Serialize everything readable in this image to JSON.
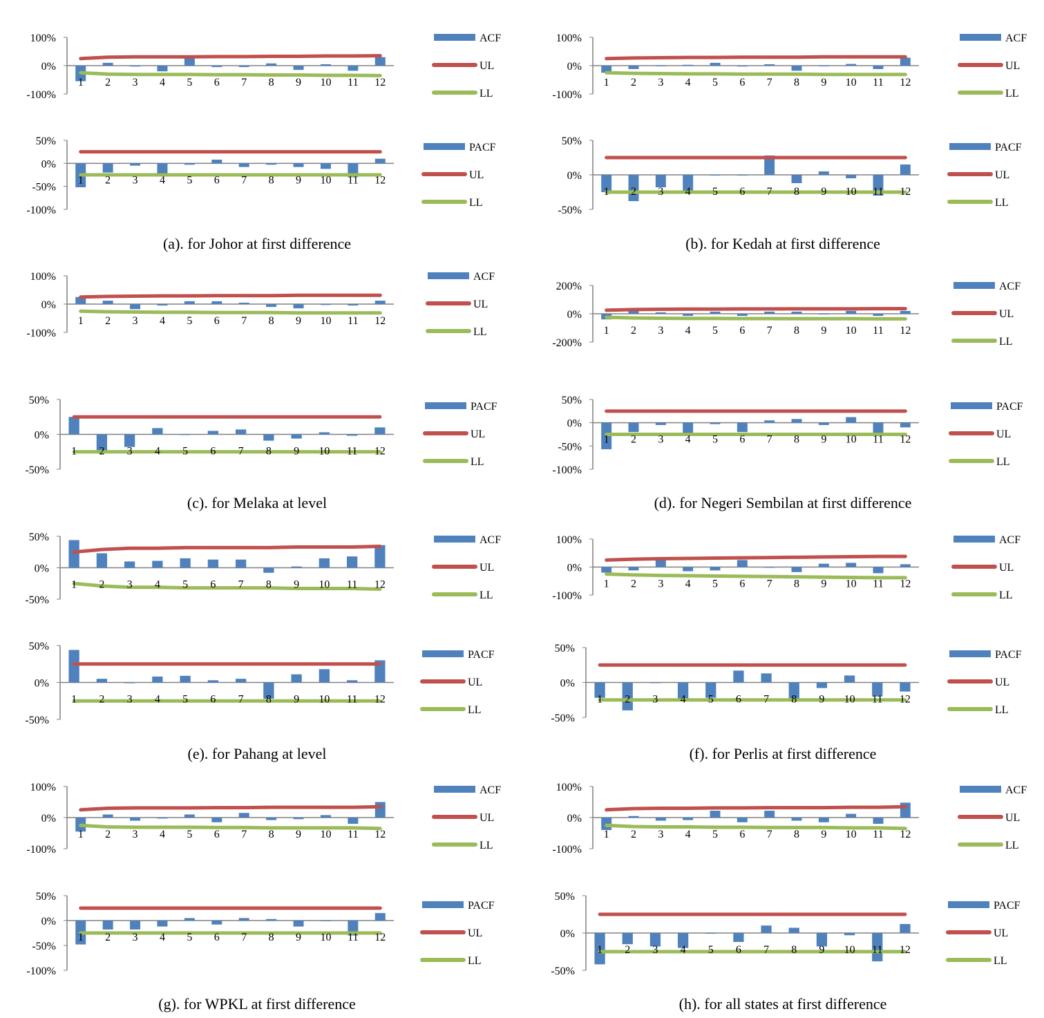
{
  "colors": {
    "acf": "#4F81BD",
    "ul": "#C0504D",
    "ll": "#9BBB59",
    "axis": "#808080",
    "text": "#000000"
  },
  "panels": [
    {
      "caption": "(a). for Johor at first difference"
    },
    {
      "caption": "(b). for Kedah at first difference"
    },
    {
      "caption": "(c). for Melaka at level"
    },
    {
      "caption": "(d). for Negeri Sembilan at first difference"
    },
    {
      "caption": "(e). for Pahang at level"
    },
    {
      "caption": "(f). for Perlis at first difference"
    },
    {
      "caption": "(g). for WPKL at first difference"
    },
    {
      "caption": "(h). for all states at first difference"
    }
  ],
  "chart_data": [
    {
      "type": "bar",
      "categories": [
        "1",
        "2",
        "3",
        "4",
        "5",
        "6",
        "7",
        "8",
        "9",
        "10",
        "11",
        "12"
      ],
      "series": [
        {
          "name": "ACF",
          "values": [
            -55,
            10,
            -3,
            -20,
            28,
            -5,
            -5,
            8,
            -15,
            5,
            -18,
            30
          ]
        },
        {
          "name": "UL",
          "values": [
            25,
            30,
            31,
            31,
            31,
            32,
            32,
            33,
            33,
            34,
            34,
            35
          ]
        },
        {
          "name": "LL",
          "values": [
            -25,
            -30,
            -31,
            -31,
            -31,
            -32,
            -32,
            -33,
            -33,
            -34,
            -34,
            -35
          ]
        }
      ],
      "yticks": [
        "100%",
        "0%",
        "-100%"
      ],
      "ylim": [
        -100,
        100
      ]
    },
    {
      "type": "bar",
      "categories": [
        "1",
        "2",
        "3",
        "4",
        "5",
        "6",
        "7",
        "8",
        "9",
        "10",
        "11",
        "12"
      ],
      "series": [
        {
          "name": "PACF",
          "values": [
            -52,
            -20,
            -5,
            -25,
            -3,
            8,
            -8,
            -3,
            -8,
            -12,
            -30,
            10
          ]
        },
        {
          "name": "UL",
          "values": [
            25,
            25,
            25,
            25,
            25,
            25,
            25,
            25,
            25,
            25,
            25,
            25
          ]
        },
        {
          "name": "LL",
          "values": [
            -25,
            -25,
            -25,
            -25,
            -25,
            -25,
            -25,
            -25,
            -25,
            -25,
            -25,
            -25
          ]
        }
      ],
      "yticks": [
        "50%",
        "0%",
        "-50%",
        "-100%"
      ],
      "ylim": [
        -100,
        50
      ]
    },
    {
      "type": "bar",
      "categories": [
        "1",
        "2",
        "3",
        "4",
        "5",
        "6",
        "7",
        "8",
        "9",
        "10",
        "11",
        "12"
      ],
      "series": [
        {
          "name": "ACF",
          "values": [
            -25,
            -12,
            0,
            3,
            10,
            -3,
            5,
            -18,
            -2,
            6,
            -12,
            28
          ]
        },
        {
          "name": "UL",
          "values": [
            25,
            27,
            28,
            29,
            29,
            30,
            30,
            30,
            31,
            31,
            31,
            31
          ]
        },
        {
          "name": "LL",
          "values": [
            -25,
            -27,
            -28,
            -29,
            -29,
            -30,
            -30,
            -30,
            -31,
            -31,
            -31,
            -31
          ]
        }
      ],
      "yticks": [
        "100%",
        "0%",
        "-100%"
      ],
      "ylim": [
        -100,
        100
      ]
    },
    {
      "type": "bar",
      "categories": [
        "1",
        "2",
        "3",
        "4",
        "5",
        "6",
        "7",
        "8",
        "9",
        "10",
        "11",
        "12"
      ],
      "series": [
        {
          "name": "PACF",
          "values": [
            -25,
            -38,
            -18,
            -25,
            0,
            0,
            28,
            -12,
            5,
            -5,
            -30,
            15
          ]
        },
        {
          "name": "UL",
          "values": [
            25,
            25,
            25,
            25,
            25,
            25,
            25,
            25,
            25,
            25,
            25,
            25
          ]
        },
        {
          "name": "LL",
          "values": [
            -25,
            -25,
            -25,
            -25,
            -25,
            -25,
            -25,
            -25,
            -25,
            -25,
            -25,
            -25
          ]
        }
      ],
      "yticks": [
        "50%",
        "0%",
        "-50%"
      ],
      "ylim": [
        -50,
        50
      ]
    },
    {
      "type": "bar",
      "categories": [
        "1",
        "2",
        "3",
        "4",
        "5",
        "6",
        "7",
        "8",
        "9",
        "10",
        "11",
        "12"
      ],
      "series": [
        {
          "name": "ACF",
          "values": [
            25,
            12,
            -18,
            -5,
            10,
            10,
            5,
            -10,
            -15,
            -3,
            -5,
            12
          ]
        },
        {
          "name": "UL",
          "values": [
            25,
            27,
            28,
            29,
            29,
            30,
            30,
            30,
            31,
            31,
            31,
            31
          ]
        },
        {
          "name": "LL",
          "values": [
            -25,
            -27,
            -28,
            -29,
            -29,
            -30,
            -30,
            -30,
            -31,
            -31,
            -31,
            -31
          ]
        }
      ],
      "yticks": [
        "100%",
        "0%",
        "-100%"
      ],
      "ylim": [
        -100,
        100
      ]
    },
    {
      "type": "bar",
      "categories": [
        "1",
        "2",
        "3",
        "4",
        "5",
        "6",
        "7",
        "8",
        "9",
        "10",
        "11",
        "12"
      ],
      "series": [
        {
          "name": "ACF",
          "values": [
            -40,
            20,
            10,
            -15,
            15,
            -15,
            15,
            15,
            -5,
            20,
            -15,
            20
          ]
        },
        {
          "name": "UL",
          "values": [
            25,
            30,
            32,
            33,
            33,
            34,
            34,
            35,
            35,
            35,
            36,
            36
          ]
        },
        {
          "name": "LL",
          "values": [
            -25,
            -30,
            -32,
            -33,
            -33,
            -34,
            -34,
            -35,
            -35,
            -35,
            -36,
            -36
          ]
        }
      ],
      "yticks": [
        "200%",
        "0%",
        "-200%"
      ],
      "ylim": [
        -200,
        200
      ]
    },
    {
      "type": "bar",
      "categories": [
        "1",
        "2",
        "3",
        "4",
        "5",
        "6",
        "7",
        "8",
        "9",
        "10",
        "11",
        "12"
      ],
      "series": [
        {
          "name": "PACF",
          "values": [
            25,
            -25,
            -18,
            9,
            0,
            5,
            7,
            -9,
            -6,
            3,
            -2,
            10
          ]
        },
        {
          "name": "UL",
          "values": [
            25,
            25,
            25,
            25,
            25,
            25,
            25,
            25,
            25,
            25,
            25,
            25
          ]
        },
        {
          "name": "LL",
          "values": [
            -25,
            -25,
            -25,
            -25,
            -25,
            -25,
            -25,
            -25,
            -25,
            -25,
            -25,
            -25
          ]
        }
      ],
      "yticks": [
        "50%",
        "0%",
        "-50%"
      ],
      "ylim": [
        -50,
        50
      ]
    },
    {
      "type": "bar",
      "categories": [
        "1",
        "2",
        "3",
        "4",
        "5",
        "6",
        "7",
        "8",
        "9",
        "10",
        "11",
        "12"
      ],
      "series": [
        {
          "name": "PACF",
          "values": [
            -57,
            -20,
            -5,
            -25,
            -3,
            -20,
            5,
            8,
            -5,
            12,
            -25,
            -10
          ]
        },
        {
          "name": "UL",
          "values": [
            25,
            25,
            25,
            25,
            25,
            25,
            25,
            25,
            25,
            25,
            25,
            25
          ]
        },
        {
          "name": "LL",
          "values": [
            -25,
            -25,
            -25,
            -25,
            -25,
            -25,
            -25,
            -25,
            -25,
            -25,
            -25,
            -25
          ]
        }
      ],
      "yticks": [
        "50%",
        "0%",
        "-50%",
        "-100%"
      ],
      "ylim": [
        -100,
        50
      ]
    },
    {
      "type": "bar",
      "categories": [
        "1",
        "2",
        "3",
        "4",
        "5",
        "6",
        "7",
        "8",
        "9",
        "10",
        "11",
        "12"
      ],
      "series": [
        {
          "name": "ACF",
          "values": [
            44,
            23,
            10,
            11,
            15,
            13,
            13,
            -8,
            2,
            15,
            18,
            36
          ]
        },
        {
          "name": "UL",
          "values": [
            25,
            29,
            31,
            31,
            32,
            32,
            32,
            32,
            33,
            33,
            33,
            34
          ]
        },
        {
          "name": "LL",
          "values": [
            -25,
            -29,
            -31,
            -31,
            -32,
            -32,
            -32,
            -32,
            -33,
            -33,
            -33,
            -34
          ]
        }
      ],
      "yticks": [
        "50%",
        "0%",
        "-50%"
      ],
      "ylim": [
        -50,
        50
      ]
    },
    {
      "type": "bar",
      "categories": [
        "1",
        "2",
        "3",
        "4",
        "5",
        "6",
        "7",
        "8",
        "9",
        "10",
        "11",
        "12"
      ],
      "series": [
        {
          "name": "ACF",
          "values": [
            -20,
            -12,
            28,
            -15,
            -12,
            25,
            0,
            -18,
            12,
            15,
            -22,
            10
          ]
        },
        {
          "name": "UL",
          "values": [
            25,
            28,
            30,
            31,
            32,
            33,
            34,
            35,
            36,
            37,
            38,
            38
          ]
        },
        {
          "name": "LL",
          "values": [
            -25,
            -28,
            -30,
            -31,
            -32,
            -33,
            -34,
            -35,
            -36,
            -37,
            -38,
            -38
          ]
        }
      ],
      "yticks": [
        "100%",
        "0%",
        "-100%"
      ],
      "ylim": [
        -100,
        100
      ]
    },
    {
      "type": "bar",
      "categories": [
        "1",
        "2",
        "3",
        "4",
        "5",
        "6",
        "7",
        "8",
        "9",
        "10",
        "11",
        "12"
      ],
      "series": [
        {
          "name": "PACF",
          "values": [
            44,
            5,
            -1,
            8,
            9,
            3,
            5,
            -22,
            11,
            18,
            3,
            30
          ]
        },
        {
          "name": "UL",
          "values": [
            25,
            25,
            25,
            25,
            25,
            25,
            25,
            25,
            25,
            25,
            25,
            25
          ]
        },
        {
          "name": "LL",
          "values": [
            -25,
            -25,
            -25,
            -25,
            -25,
            -25,
            -25,
            -25,
            -25,
            -25,
            -25,
            -25
          ]
        }
      ],
      "yticks": [
        "50%",
        "0%",
        "-50%"
      ],
      "ylim": [
        -50,
        50
      ]
    },
    {
      "type": "bar",
      "categories": [
        "1",
        "2",
        "3",
        "4",
        "5",
        "6",
        "7",
        "8",
        "9",
        "10",
        "11",
        "12"
      ],
      "series": [
        {
          "name": "PACF",
          "values": [
            -22,
            -40,
            -1,
            -25,
            -22,
            17,
            13,
            -25,
            -8,
            10,
            -20,
            -13
          ]
        },
        {
          "name": "UL",
          "values": [
            25,
            25,
            25,
            25,
            25,
            25,
            25,
            25,
            25,
            25,
            25,
            25
          ]
        },
        {
          "name": "LL",
          "values": [
            -25,
            -25,
            -25,
            -25,
            -25,
            -25,
            -25,
            -25,
            -25,
            -25,
            -25,
            -25
          ]
        }
      ],
      "yticks": [
        "50%",
        "0%",
        "-50%"
      ],
      "ylim": [
        -50,
        50
      ]
    },
    {
      "type": "bar",
      "categories": [
        "1",
        "2",
        "3",
        "4",
        "5",
        "6",
        "7",
        "8",
        "9",
        "10",
        "11",
        "12"
      ],
      "series": [
        {
          "name": "ACF",
          "values": [
            -45,
            10,
            -10,
            -3,
            10,
            -15,
            15,
            -8,
            -5,
            8,
            -20,
            50
          ]
        },
        {
          "name": "UL",
          "values": [
            25,
            30,
            31,
            31,
            31,
            32,
            32,
            33,
            33,
            33,
            33,
            35
          ]
        },
        {
          "name": "LL",
          "values": [
            -25,
            -30,
            -31,
            -31,
            -31,
            -32,
            -32,
            -33,
            -33,
            -33,
            -33,
            -35
          ]
        }
      ],
      "yticks": [
        "100%",
        "0%",
        "-100%"
      ],
      "ylim": [
        -100,
        100
      ]
    },
    {
      "type": "bar",
      "categories": [
        "1",
        "2",
        "3",
        "4",
        "5",
        "6",
        "7",
        "8",
        "9",
        "10",
        "11",
        "12"
      ],
      "series": [
        {
          "name": "ACF",
          "values": [
            -40,
            5,
            -10,
            -8,
            22,
            -15,
            22,
            -10,
            -15,
            12,
            -20,
            48
          ]
        },
        {
          "name": "UL",
          "values": [
            25,
            29,
            30,
            30,
            31,
            31,
            32,
            32,
            32,
            33,
            33,
            35
          ]
        },
        {
          "name": "LL",
          "values": [
            -25,
            -29,
            -30,
            -30,
            -31,
            -31,
            -32,
            -32,
            -32,
            -33,
            -33,
            -35
          ]
        }
      ],
      "yticks": [
        "100%",
        "0%",
        "-100%"
      ],
      "ylim": [
        -100,
        100
      ]
    },
    {
      "type": "bar",
      "categories": [
        "1",
        "2",
        "3",
        "4",
        "5",
        "6",
        "7",
        "8",
        "9",
        "10",
        "11",
        "12"
      ],
      "series": [
        {
          "name": "PACF",
          "values": [
            -48,
            -18,
            -18,
            -12,
            5,
            -8,
            5,
            3,
            -12,
            0,
            -30,
            15
          ]
        },
        {
          "name": "UL",
          "values": [
            25,
            25,
            25,
            25,
            25,
            25,
            25,
            25,
            25,
            25,
            25,
            25
          ]
        },
        {
          "name": "LL",
          "values": [
            -25,
            -25,
            -25,
            -25,
            -25,
            -25,
            -25,
            -25,
            -25,
            -25,
            -25,
            -25
          ]
        }
      ],
      "yticks": [
        "50%",
        "0%",
        "-50%",
        "-100%"
      ],
      "ylim": [
        -100,
        50
      ]
    },
    {
      "type": "bar",
      "categories": [
        "1",
        "2",
        "3",
        "4",
        "5",
        "6",
        "7",
        "8",
        "9",
        "10",
        "11",
        "12"
      ],
      "series": [
        {
          "name": "PACF",
          "values": [
            -42,
            -15,
            -18,
            -20,
            0,
            -12,
            10,
            7,
            -18,
            -3,
            -38,
            12
          ]
        },
        {
          "name": "UL",
          "values": [
            25,
            25,
            25,
            25,
            25,
            25,
            25,
            25,
            25,
            25,
            25,
            25
          ]
        },
        {
          "name": "LL",
          "values": [
            -25,
            -25,
            -25,
            -25,
            -25,
            -25,
            -25,
            -25,
            -25,
            -25,
            -25,
            -25
          ]
        }
      ],
      "yticks": [
        "50%",
        "0%",
        "-50%"
      ],
      "ylim": [
        -50,
        50
      ]
    }
  ]
}
